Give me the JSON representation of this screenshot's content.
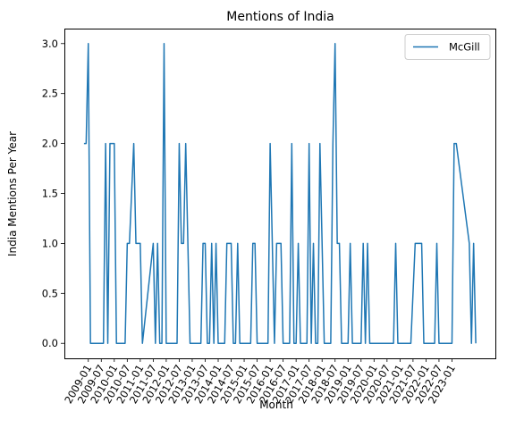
{
  "chart_data": {
    "type": "line",
    "title": "Mentions of India",
    "xlabel": "Month",
    "ylabel": "India Mentions Per Year",
    "ylim": [
      -0.15,
      3.15
    ],
    "yticks": [
      "0.0",
      "0.5",
      "1.0",
      "1.5",
      "2.0",
      "2.5",
      "3.0"
    ],
    "ytick_values": [
      0,
      0.5,
      1,
      1.5,
      2,
      2.5,
      3
    ],
    "xticks": [
      "2009-01",
      "2009-07",
      "2010-01",
      "2010-07",
      "2011-01",
      "2011-07",
      "2012-01",
      "2012-07",
      "2013-01",
      "2013-07",
      "2014-01",
      "2014-07",
      "2015-01",
      "2015-07",
      "2016-01",
      "2016-07",
      "2017-01",
      "2017-07",
      "2018-01",
      "2018-07",
      "2019-01",
      "2019-07",
      "2020-01",
      "2020-07",
      "2021-01",
      "2021-07",
      "2022-01",
      "2022-07",
      "2023-01"
    ],
    "legend": "upper right",
    "grid": false,
    "series": [
      {
        "name": "McGill",
        "color": "#1f77b4",
        "points": [
          [
            "2008-11",
            2
          ],
          [
            "2008-12",
            2
          ],
          [
            "2009-01",
            3
          ],
          [
            "2009-02",
            0
          ],
          [
            "2009-03",
            0
          ],
          [
            "2009-04",
            0
          ],
          [
            "2009-05",
            0
          ],
          [
            "2009-06",
            0
          ],
          [
            "2009-07",
            0
          ],
          [
            "2009-08",
            0
          ],
          [
            "2009-09",
            2
          ],
          [
            "2009-10",
            0
          ],
          [
            "2009-11",
            2
          ],
          [
            "2009-12",
            2
          ],
          [
            "2010-01",
            2
          ],
          [
            "2010-02",
            0
          ],
          [
            "2010-03",
            0
          ],
          [
            "2010-04",
            0
          ],
          [
            "2010-05",
            0
          ],
          [
            "2010-06",
            0
          ],
          [
            "2010-07",
            1
          ],
          [
            "2010-08",
            1
          ],
          [
            "2010-09",
            1.5
          ],
          [
            "2010-10",
            2
          ],
          [
            "2010-11",
            1
          ],
          [
            "2010-12",
            1
          ],
          [
            "2011-01",
            1
          ],
          [
            "2011-02",
            0
          ],
          [
            "2011-07",
            1
          ],
          [
            "2011-08",
            0
          ],
          [
            "2011-09",
            1
          ],
          [
            "2011-10",
            0
          ],
          [
            "2011-11",
            0
          ],
          [
            "2011-12",
            3
          ],
          [
            "2012-01",
            0
          ],
          [
            "2012-02",
            0
          ],
          [
            "2012-03",
            0
          ],
          [
            "2012-04",
            0
          ],
          [
            "2012-05",
            0
          ],
          [
            "2012-06",
            0
          ],
          [
            "2012-07",
            2
          ],
          [
            "2012-08",
            1
          ],
          [
            "2012-09",
            1
          ],
          [
            "2012-10",
            2
          ],
          [
            "2012-11",
            1
          ],
          [
            "2012-12",
            0
          ],
          [
            "2013-01",
            0
          ],
          [
            "2013-02",
            0
          ],
          [
            "2013-03",
            0
          ],
          [
            "2013-04",
            0
          ],
          [
            "2013-05",
            0
          ],
          [
            "2013-06",
            1
          ],
          [
            "2013-07",
            1
          ],
          [
            "2013-08",
            0
          ],
          [
            "2013-09",
            0
          ],
          [
            "2013-10",
            1
          ],
          [
            "2013-11",
            0
          ],
          [
            "2013-12",
            1
          ],
          [
            "2014-01",
            0
          ],
          [
            "2014-02",
            0
          ],
          [
            "2014-03",
            0
          ],
          [
            "2014-04",
            0
          ],
          [
            "2014-05",
            1
          ],
          [
            "2014-06",
            1
          ],
          [
            "2014-07",
            1
          ],
          [
            "2014-08",
            0
          ],
          [
            "2014-09",
            0
          ],
          [
            "2014-10",
            1
          ],
          [
            "2014-11",
            0
          ],
          [
            "2014-12",
            0
          ],
          [
            "2015-01",
            0
          ],
          [
            "2015-02",
            0
          ],
          [
            "2015-03",
            0
          ],
          [
            "2015-04",
            0
          ],
          [
            "2015-05",
            1
          ],
          [
            "2015-06",
            1
          ],
          [
            "2015-07",
            0
          ],
          [
            "2015-08",
            0
          ],
          [
            "2015-09",
            0
          ],
          [
            "2015-10",
            0
          ],
          [
            "2015-11",
            0
          ],
          [
            "2015-12",
            0
          ],
          [
            "2016-01",
            2
          ],
          [
            "2016-02",
            1
          ],
          [
            "2016-03",
            0
          ],
          [
            "2016-04",
            1
          ],
          [
            "2016-05",
            1
          ],
          [
            "2016-06",
            1
          ],
          [
            "2016-07",
            0
          ],
          [
            "2016-08",
            0
          ],
          [
            "2016-09",
            0
          ],
          [
            "2016-10",
            0
          ],
          [
            "2016-11",
            2
          ],
          [
            "2016-12",
            0
          ],
          [
            "2017-01",
            0
          ],
          [
            "2017-02",
            1
          ],
          [
            "2017-03",
            0
          ],
          [
            "2017-04",
            0
          ],
          [
            "2017-05",
            0
          ],
          [
            "2017-06",
            0
          ],
          [
            "2017-07",
            2
          ],
          [
            "2017-08",
            0
          ],
          [
            "2017-09",
            1
          ],
          [
            "2017-10",
            0
          ],
          [
            "2017-11",
            0
          ],
          [
            "2017-12",
            2
          ],
          [
            "2018-01",
            1
          ],
          [
            "2018-02",
            0
          ],
          [
            "2018-03",
            0
          ],
          [
            "2018-04",
            0
          ],
          [
            "2018-05",
            0
          ],
          [
            "2018-06",
            2
          ],
          [
            "2018-07",
            3
          ],
          [
            "2018-08",
            1
          ],
          [
            "2018-09",
            1
          ],
          [
            "2018-10",
            0
          ],
          [
            "2018-11",
            0
          ],
          [
            "2018-12",
            0
          ],
          [
            "2019-01",
            0
          ],
          [
            "2019-02",
            1
          ],
          [
            "2019-03",
            0
          ],
          [
            "2019-04",
            0
          ],
          [
            "2019-05",
            0
          ],
          [
            "2019-06",
            0
          ],
          [
            "2019-07",
            0
          ],
          [
            "2019-08",
            1
          ],
          [
            "2019-09",
            0
          ],
          [
            "2019-10",
            1
          ],
          [
            "2019-11",
            0
          ],
          [
            "2019-12",
            0
          ],
          [
            "2020-01",
            0
          ],
          [
            "2020-02",
            0
          ],
          [
            "2020-03",
            0
          ],
          [
            "2020-04",
            0
          ],
          [
            "2020-05",
            0
          ],
          [
            "2020-06",
            0
          ],
          [
            "2020-07",
            0
          ],
          [
            "2020-08",
            0
          ],
          [
            "2020-09",
            0
          ],
          [
            "2020-10",
            0
          ],
          [
            "2020-11",
            1
          ],
          [
            "2020-12",
            0
          ],
          [
            "2021-01",
            0
          ],
          [
            "2021-02",
            0
          ],
          [
            "2021-03",
            0
          ],
          [
            "2021-04",
            0
          ],
          [
            "2021-05",
            0
          ],
          [
            "2021-06",
            0
          ],
          [
            "2021-07",
            0.5
          ],
          [
            "2021-08",
            1
          ],
          [
            "2021-09",
            1
          ],
          [
            "2021-10",
            1
          ],
          [
            "2021-11",
            1
          ],
          [
            "2021-12",
            0
          ],
          [
            "2022-01",
            0
          ],
          [
            "2022-02",
            0
          ],
          [
            "2022-03",
            0
          ],
          [
            "2022-04",
            0
          ],
          [
            "2022-05",
            0
          ],
          [
            "2022-06",
            1
          ],
          [
            "2022-07",
            0
          ],
          [
            "2022-08",
            0
          ],
          [
            "2022-09",
            0
          ],
          [
            "2022-10",
            0
          ],
          [
            "2022-11",
            0
          ],
          [
            "2022-12",
            0
          ],
          [
            "2023-01",
            0
          ],
          [
            "2023-02",
            2
          ],
          [
            "2023-03",
            2
          ],
          [
            "2023-09",
            1
          ],
          [
            "2023-10",
            0
          ],
          [
            "2023-11",
            1
          ],
          [
            "2023-12",
            0
          ]
        ]
      }
    ]
  }
}
